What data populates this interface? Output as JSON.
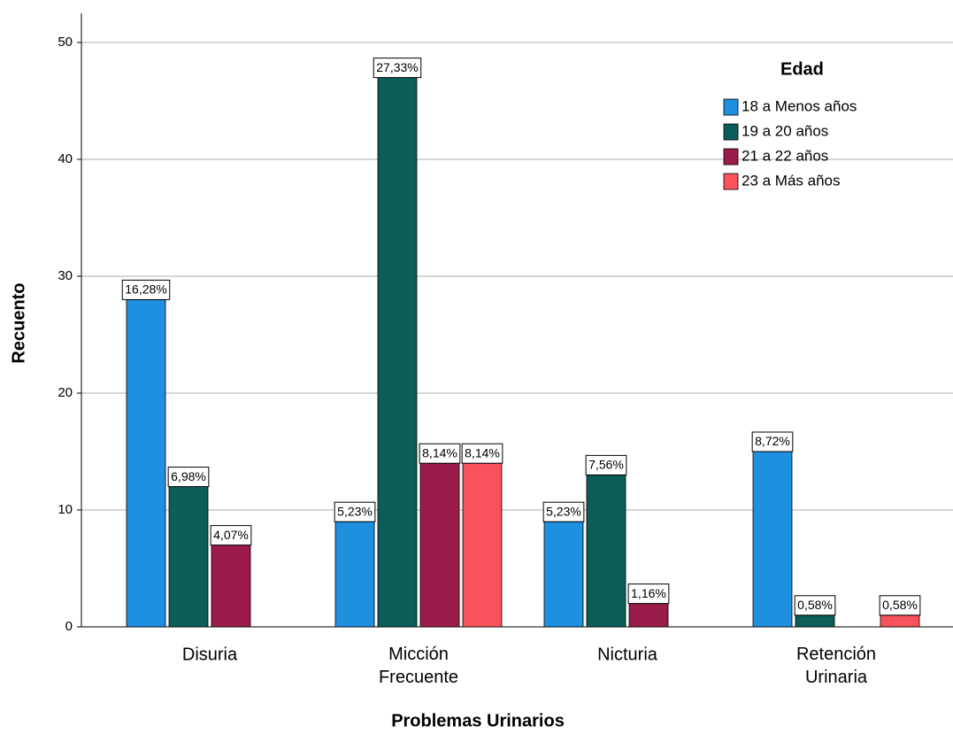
{
  "chart_data": {
    "type": "bar",
    "x_label": "Problemas Urinarios",
    "y_label": "Recuento",
    "categories": [
      "Disuria",
      "Micción Frecuente",
      "Nicturia",
      "Retención Urinaria"
    ],
    "legend_title": "Edad",
    "legend": "upper right",
    "grid": true,
    "ylim": [
      0,
      52.5
    ],
    "yticks": [
      0,
      10,
      20,
      30,
      40,
      50
    ],
    "series": [
      {
        "name": "18 a Menos años",
        "color": "#1f90e0",
        "values": [
          28,
          9,
          9,
          15
        ],
        "value_labels": [
          "16,28%",
          "5,23%",
          "5,23%",
          "8,72%"
        ]
      },
      {
        "name": "19 a 20 años",
        "color": "#0b5e58",
        "values": [
          12,
          47,
          13,
          1
        ],
        "value_labels": [
          "6,98%",
          "27,33%",
          "7,56%",
          "0,58%"
        ]
      },
      {
        "name": "21 a 22 años",
        "color": "#9b1b4b",
        "values": [
          7,
          14,
          2,
          null
        ],
        "value_labels": [
          "4,07%",
          "8,14%",
          "1,16%",
          null
        ]
      },
      {
        "name": "23 a Más años",
        "color": "#f8525a",
        "values": [
          null,
          14,
          null,
          1
        ],
        "value_labels": [
          null,
          "8,14%",
          null,
          "0,58%"
        ]
      }
    ]
  }
}
